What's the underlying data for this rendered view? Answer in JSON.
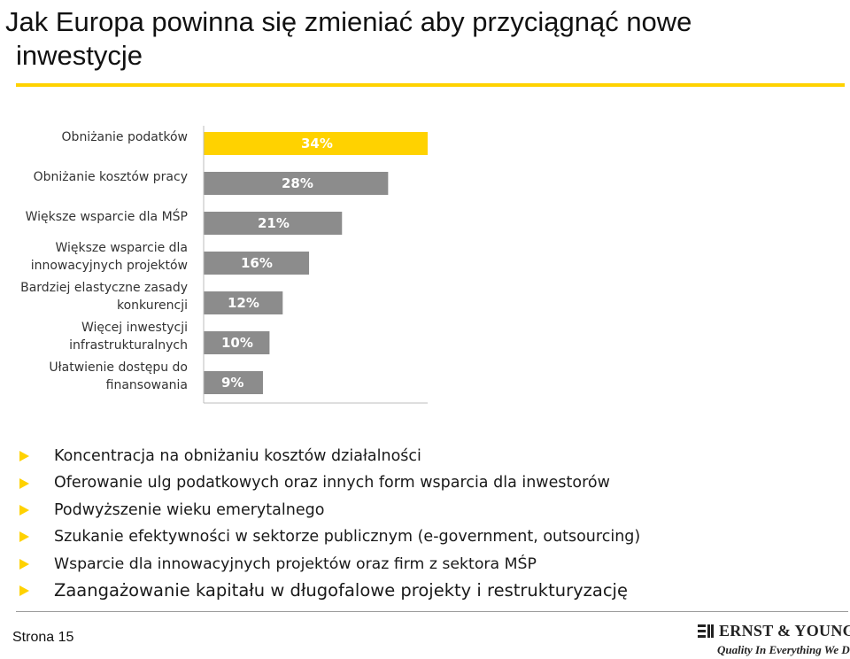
{
  "header": {
    "title_line1": "Jak Europa powinna się zmieniać aby przyciągnąć nowe",
    "title_line2": "inwestycje"
  },
  "colors": {
    "accent_yellow": "#FFD200",
    "bar_grey": "#8C8C8C",
    "highlight_bar": "#FFD200"
  },
  "chart_data": {
    "type": "bar",
    "orientation": "horizontal",
    "categories": [
      [
        "Obniżanie podatków"
      ],
      [
        "Obniżanie kosztów pracy"
      ],
      [
        "Większe wsparcie dla MŚP"
      ],
      [
        "Większe wsparcie dla",
        "innowacyjnych projektów"
      ],
      [
        "Bardziej elastyczne zasady",
        "konkurencji"
      ],
      [
        "Więcej inwestycji",
        "infrastrukturalnych"
      ],
      [
        "Ułatwienie dostępu do",
        "finansowania"
      ]
    ],
    "values": [
      34,
      28,
      21,
      16,
      12,
      10,
      9
    ],
    "value_labels": [
      "34%",
      "28%",
      "21%",
      "16%",
      "12%",
      "10%",
      "9%"
    ],
    "highlighted_index": 0,
    "title": "",
    "xlabel": "",
    "ylabel": "",
    "xlim": [
      0,
      34
    ],
    "grid": false,
    "legend": "none"
  },
  "bullets": [
    "Koncentracja na obniżaniu kosztów działalności",
    "Oferowanie ulg podatkowych oraz innych form wsparcia dla inwestorów",
    "Podwyższenie wieku emerytalnego",
    "Szukanie efektywności w sektorze publicznym (e-government, outsourcing)",
    "Wsparcie dla innowacyjnych projektów oraz firm z sektora MŚP",
    "Zaangażowanie kapitału w długofalowe projekty i restrukturyzację"
  ],
  "footer": {
    "page": "Strona 15",
    "logo_name": "ERNST & YOUNG",
    "logo_tagline": "Quality In Everything We Do"
  }
}
